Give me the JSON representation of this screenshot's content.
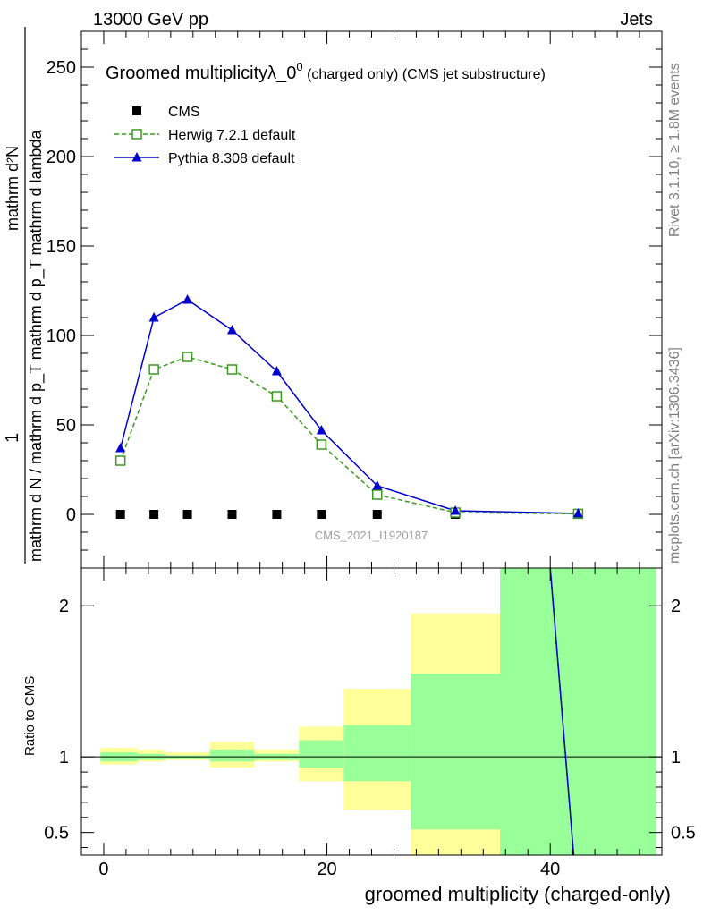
{
  "header": {
    "left": "13000 GeV pp",
    "right": "Jets"
  },
  "side": {
    "rivet": "Rivet 3.1.10, ≥ 1.8M events",
    "mcplots": "mcplots.cern.ch [arXiv:1306.3436]"
  },
  "chart_data": {
    "type": "line",
    "title": "Groomed multiplicityλ_0",
    "title_sup": "0",
    "title_suffix": " (charged only) (CMS jet substructure)",
    "watermark": "CMS_2021_I1920187",
    "ylabel_num": "1",
    "ylabel_den": "mathrm d N / mathrm d p_T mathrm d p_T mathrm d lambda",
    "ylabel_top": "mathrm d²N",
    "xlabel": "groomed multiplicity (charged-only)",
    "ratio_ylabel": "Ratio to CMS",
    "xlim": [
      -2,
      50
    ],
    "ylim": [
      -30,
      270
    ],
    "ratio_ylim": [
      0.35,
      2.25
    ],
    "xticks": [
      0,
      20,
      40
    ],
    "yticks": [
      0,
      50,
      100,
      150,
      200,
      250
    ],
    "ratio_yticks": [
      0.5,
      1,
      2
    ],
    "x": [
      1.5,
      4.5,
      7.5,
      11.5,
      15.5,
      19.5,
      24.5,
      31.5,
      42.5
    ],
    "series": [
      {
        "name": "CMS",
        "color": "#000000",
        "marker": "square",
        "values": [
          0,
          0,
          0,
          0,
          0,
          0,
          0,
          0,
          0
        ]
      },
      {
        "name": "Herwig 7.2.1 default",
        "color": "#3a9a1e",
        "marker": "open-square",
        "dashed": true,
        "values": [
          30,
          81,
          88,
          81,
          66,
          39,
          11,
          1,
          0.3
        ]
      },
      {
        "name": "Pythia 8.308 default",
        "color": "#0000cc",
        "marker": "triangle",
        "values": [
          37,
          110,
          120,
          103,
          80,
          47,
          16,
          2,
          0.5
        ]
      }
    ],
    "ratio_bands": [
      {
        "x0": -0.3,
        "x1": 3,
        "y_lo": 0.95,
        "y_hi": 1.06,
        "g_lo": 0.97,
        "g_hi": 1.03
      },
      {
        "x0": 3,
        "x1": 5.5,
        "y_lo": 0.97,
        "y_hi": 1.05,
        "g_lo": 0.98,
        "g_hi": 1.02
      },
      {
        "x0": 5.5,
        "x1": 9.5,
        "y_lo": 0.98,
        "y_hi": 1.03,
        "g_lo": 0.99,
        "g_hi": 1.01
      },
      {
        "x0": 9.5,
        "x1": 13.5,
        "y_lo": 0.93,
        "y_hi": 1.1,
        "g_lo": 0.97,
        "g_hi": 1.05
      },
      {
        "x0": 13.5,
        "x1": 17.5,
        "y_lo": 0.97,
        "y_hi": 1.05,
        "g_lo": 0.98,
        "g_hi": 1.02
      },
      {
        "x0": 17.5,
        "x1": 21.5,
        "y_lo": 0.84,
        "y_hi": 1.2,
        "g_lo": 0.93,
        "g_hi": 1.11
      },
      {
        "x0": 21.5,
        "x1": 27.5,
        "y_lo": 0.65,
        "y_hi": 1.45,
        "g_lo": 0.84,
        "g_hi": 1.21
      },
      {
        "x0": 27.5,
        "x1": 35.5,
        "y_lo": 0.35,
        "y_hi": 1.95,
        "g_lo": 0.52,
        "g_hi": 1.55
      },
      {
        "x0": 35.5,
        "x1": 49.5,
        "y_lo": 0.35,
        "y_hi": 2.25,
        "g_lo": 0.35,
        "g_hi": 2.25
      }
    ],
    "ratio_lines": [
      {
        "name": "Herwig 7.2.1 default",
        "color": "#3a9a1e",
        "x": [
          40.0,
          42.1
        ],
        "values": [
          2.25,
          0.35
        ]
      },
      {
        "name": "Pythia 8.308 default",
        "color": "#0000cc",
        "x": [
          40.0,
          42.1
        ],
        "values": [
          2.25,
          0.35
        ]
      }
    ]
  }
}
